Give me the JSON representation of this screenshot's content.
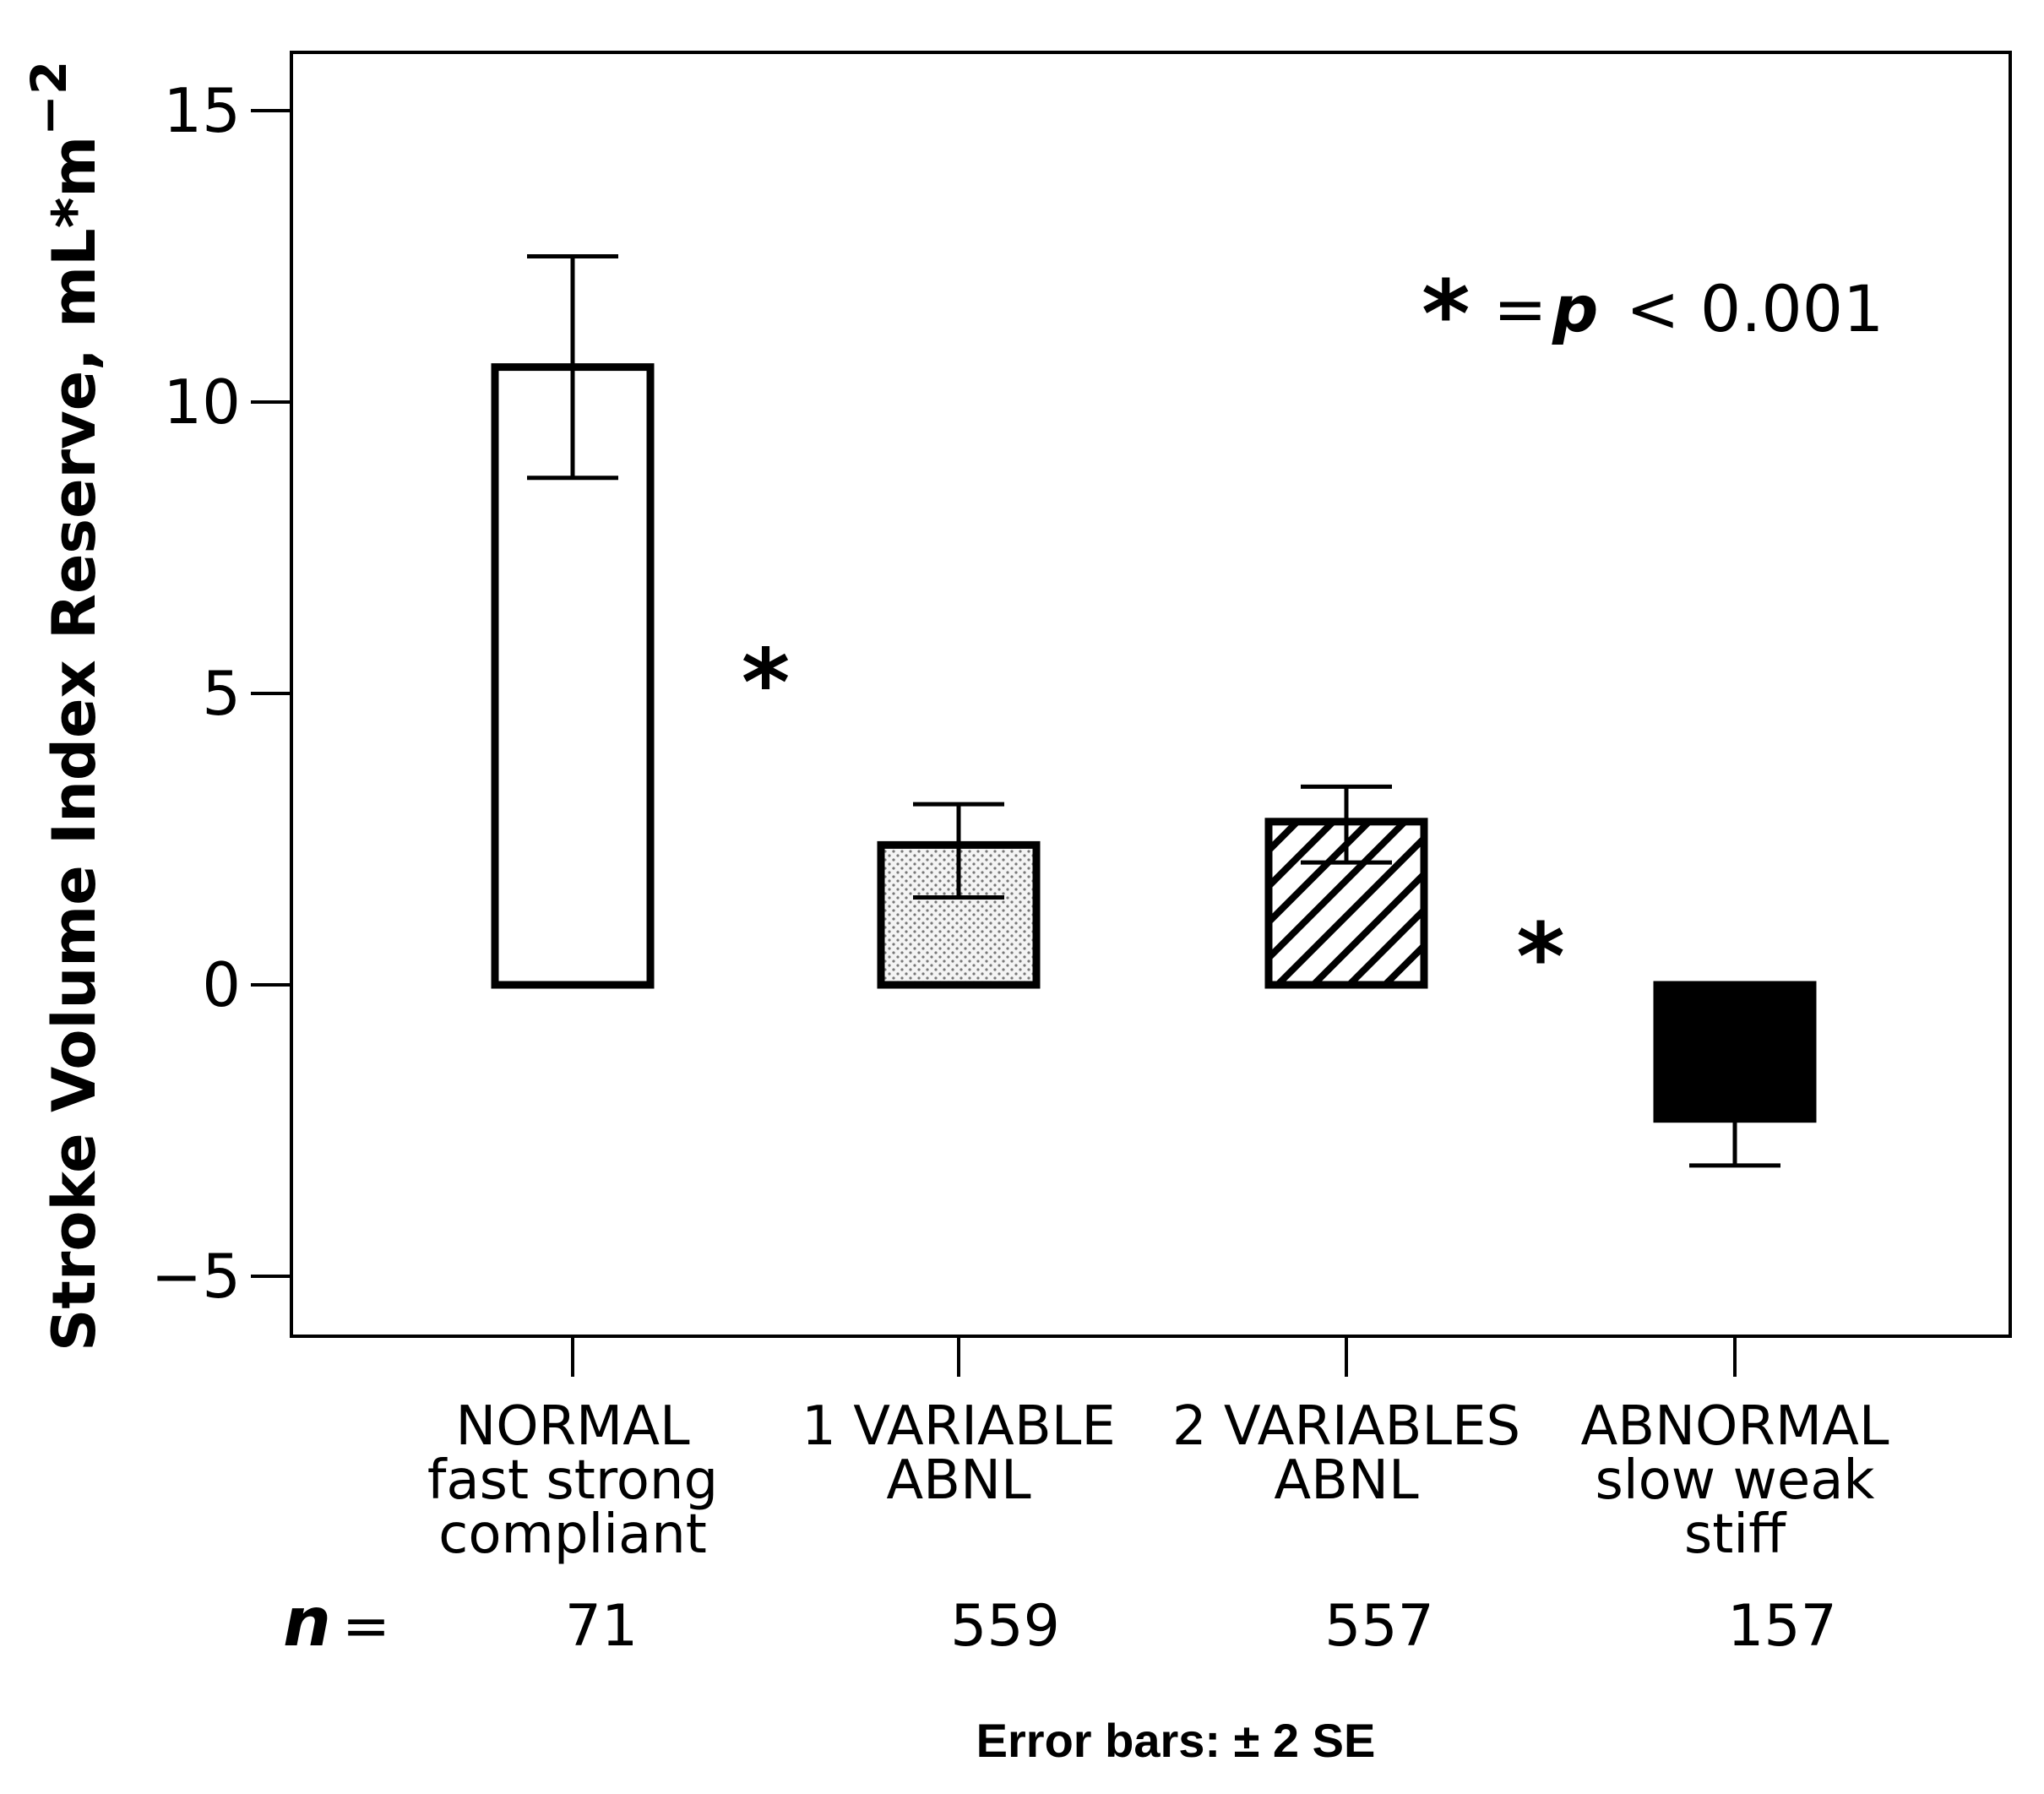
{
  "chart_data": {
    "type": "bar",
    "ylabel": "Stroke Volume Index Reserve, mL*m",
    "ylabel_exponent": "−2",
    "ylim": [
      -6,
      16
    ],
    "yticks": [
      -5,
      0,
      5,
      10,
      15
    ],
    "ytick_labels": [
      "−5",
      "0",
      "5",
      "10",
      "15"
    ],
    "categories": [
      [
        "NORMAL",
        "fast strong",
        "compliant"
      ],
      [
        "1 VARIABLE",
        "ABNL"
      ],
      [
        "2 VARIABLES",
        "ABNL"
      ],
      [
        "ABNORMAL",
        "slow weak",
        "stiff"
      ]
    ],
    "values": [
      10.6,
      2.4,
      2.8,
      -2.3
    ],
    "error_low": [
      8.7,
      1.5,
      2.1,
      -3.1
    ],
    "error_high": [
      12.5,
      3.1,
      3.4,
      -1.5
    ],
    "fills": [
      "white",
      "dotted",
      "hatched",
      "black"
    ],
    "n_label": "n",
    "n_equals": "=",
    "n_values": [
      "71",
      "559",
      "557",
      "157"
    ],
    "significance": [
      {
        "between": [
          0,
          1
        ],
        "y": 5.5,
        "symbol": "*"
      },
      {
        "between": [
          2,
          3
        ],
        "y": 0.8,
        "symbol": "*"
      }
    ],
    "legend_note": {
      "symbol": "*",
      "equals": "=",
      "p": "p",
      "rest": "< 0.001"
    },
    "footnote": "Error bars: ± 2 SE",
    "grid": false
  }
}
